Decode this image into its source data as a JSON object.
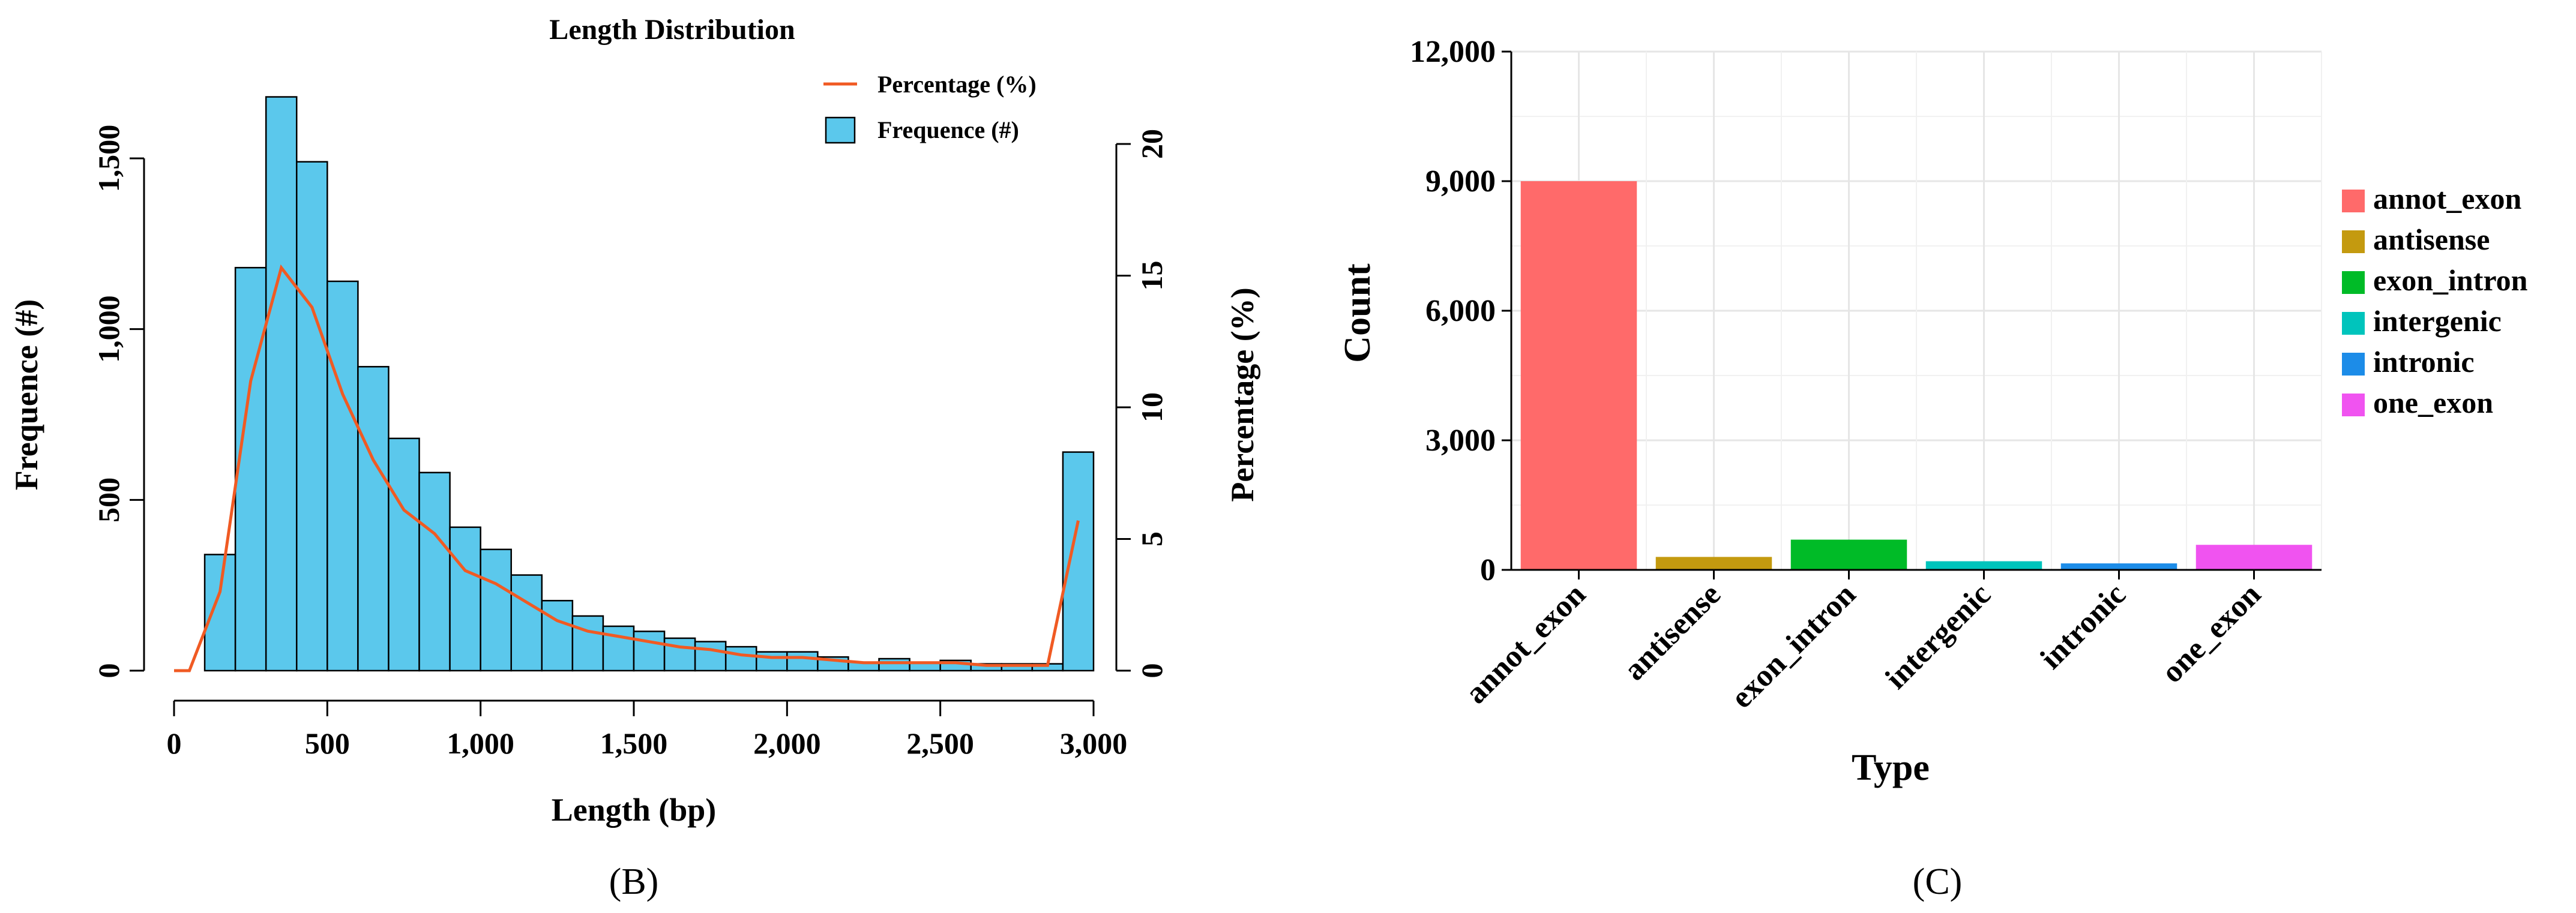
{
  "chart_data": [
    {
      "type": "bar",
      "panel_label": "(B)",
      "title": "Length Distribution",
      "xlabel": "Length (bp)",
      "ylabel": "Frequence (#)",
      "y2label": "Percentage (%)",
      "xlim": [
        0,
        3000
      ],
      "ylim": [
        0,
        1800
      ],
      "y2lim": [
        0,
        20
      ],
      "xticks": [
        0,
        500,
        1000,
        1500,
        2000,
        2500,
        3000
      ],
      "xtick_labels": [
        "0",
        "500",
        "1,000",
        "1,500",
        "2,000",
        "2,500",
        "3,000"
      ],
      "yticks": [
        0,
        500,
        1000,
        1500
      ],
      "ytick_labels": [
        "0",
        "500",
        "1,000",
        "1,500"
      ],
      "y2ticks": [
        0,
        5,
        10,
        15,
        20
      ],
      "y2tick_labels": [
        "0",
        "5",
        "10",
        "15",
        "20"
      ],
      "legend": {
        "position": "top-right",
        "entries": [
          "Percentage (%)",
          "Frequence (#)"
        ]
      },
      "bin_width": 100,
      "bins": [
        {
          "x0": 100,
          "x1": 200,
          "value": 340
        },
        {
          "x0": 200,
          "x1": 300,
          "value": 1180
        },
        {
          "x0": 300,
          "x1": 400,
          "value": 1680
        },
        {
          "x0": 400,
          "x1": 500,
          "value": 1490
        },
        {
          "x0": 500,
          "x1": 600,
          "value": 1140
        },
        {
          "x0": 600,
          "x1": 700,
          "value": 890
        },
        {
          "x0": 700,
          "x1": 800,
          "value": 680
        },
        {
          "x0": 800,
          "x1": 900,
          "value": 580
        },
        {
          "x0": 900,
          "x1": 1000,
          "value": 420
        },
        {
          "x0": 1000,
          "x1": 1100,
          "value": 355
        },
        {
          "x0": 1100,
          "x1": 1200,
          "value": 280
        },
        {
          "x0": 1200,
          "x1": 1300,
          "value": 205
        },
        {
          "x0": 1300,
          "x1": 1400,
          "value": 160
        },
        {
          "x0": 1400,
          "x1": 1500,
          "value": 130
        },
        {
          "x0": 1500,
          "x1": 1600,
          "value": 115
        },
        {
          "x0": 1600,
          "x1": 1700,
          "value": 95
        },
        {
          "x0": 1700,
          "x1": 1800,
          "value": 85
        },
        {
          "x0": 1800,
          "x1": 1900,
          "value": 70
        },
        {
          "x0": 1900,
          "x1": 2000,
          "value": 55
        },
        {
          "x0": 2000,
          "x1": 2100,
          "value": 55
        },
        {
          "x0": 2100,
          "x1": 2200,
          "value": 40
        },
        {
          "x0": 2200,
          "x1": 2300,
          "value": 25
        },
        {
          "x0": 2300,
          "x1": 2400,
          "value": 35
        },
        {
          "x0": 2400,
          "x1": 2500,
          "value": 25
        },
        {
          "x0": 2500,
          "x1": 2600,
          "value": 30
        },
        {
          "x0": 2600,
          "x1": 2700,
          "value": 20
        },
        {
          "x0": 2700,
          "x1": 2800,
          "value": 20
        },
        {
          "x0": 2800,
          "x1": 2900,
          "value": 20
        },
        {
          "x0": 2900,
          "x1": 3000,
          "value": 640
        }
      ],
      "series": [
        {
          "name": "Percentage (%)",
          "x": [
            0,
            50,
            150,
            250,
            350,
            450,
            550,
            650,
            750,
            850,
            950,
            1050,
            1150,
            1250,
            1350,
            1450,
            1550,
            1650,
            1750,
            1850,
            1950,
            2050,
            2150,
            2250,
            2350,
            2450,
            2550,
            2650,
            2750,
            2850,
            2950
          ],
          "y": [
            0,
            0,
            3,
            11,
            15.3,
            13.8,
            10.5,
            8,
            6.1,
            5.2,
            3.8,
            3.3,
            2.6,
            1.9,
            1.5,
            1.3,
            1.1,
            0.9,
            0.8,
            0.6,
            0.5,
            0.5,
            0.4,
            0.3,
            0.3,
            0.3,
            0.3,
            0.2,
            0.2,
            0.2,
            5.7
          ]
        }
      ],
      "colors": {
        "bar": "#5bc8ec",
        "line": "#f05a23"
      }
    },
    {
      "type": "bar",
      "panel_label": "(C)",
      "xlabel": "Type",
      "ylabel": "Count",
      "ylim": [
        0,
        12000
      ],
      "yticks": [
        0,
        3000,
        6000,
        9000,
        12000
      ],
      "ytick_labels": [
        "0",
        "3,000",
        "6,000",
        "9,000",
        "12,000"
      ],
      "categories": [
        "annot_exon",
        "antisense",
        "exon_intron",
        "intergenic",
        "intronic",
        "one_exon"
      ],
      "values": [
        9000,
        300,
        700,
        200,
        150,
        580
      ],
      "colors": [
        "#ff6a6a",
        "#c49a0f",
        "#00bb27",
        "#00c4bc",
        "#1c8ce8",
        "#f053f0"
      ],
      "legend": {
        "position": "right",
        "entries": [
          "annot_exon",
          "antisense",
          "exon_intron",
          "intergenic",
          "intronic",
          "one_exon"
        ]
      }
    }
  ]
}
